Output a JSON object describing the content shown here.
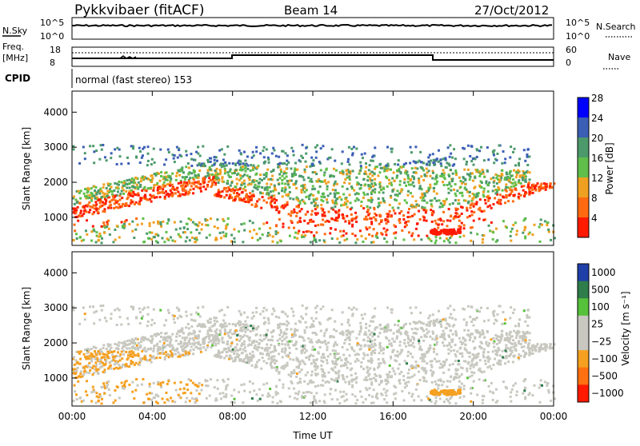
{
  "header": {
    "title": "Pykkvibaer (fitACF)",
    "beam": "Beam 14",
    "date": "27/Oct/2012"
  },
  "nsky_panel": {
    "left_label": "N.Sky",
    "right_label": "N.Search",
    "left_ticks": [
      "10^5",
      "10^0"
    ],
    "right_ticks": [
      "10^5",
      "10^0"
    ]
  },
  "freq_panel": {
    "left_label_line1": "Freq.",
    "left_label_line2": "[MHz]",
    "right_label": "Nave",
    "left_ticks": [
      "18",
      "8"
    ],
    "right_ticks": [
      "60",
      "0"
    ]
  },
  "cpid": {
    "label": "CPID",
    "value": "normal (fast stereo) 153"
  },
  "chart_data": [
    {
      "type": "heatmap",
      "name": "power",
      "ylabel": "Slant Range [km]",
      "ylim": [
        200,
        4600
      ],
      "yticks": [
        "1000",
        "2000",
        "3000",
        "4000"
      ],
      "colorbar_label": "Power [dB]",
      "colorbar_ticks": [
        "4",
        "8",
        "12",
        "16",
        "20",
        "24",
        "28"
      ],
      "colorbar_colors": [
        "#0000ff",
        "#3b5fb5",
        "#4c9a6b",
        "#5fbf4a",
        "#f0a020",
        "#ff6a10",
        "#ff1a00"
      ]
    },
    {
      "type": "heatmap",
      "name": "velocity",
      "ylabel": "Slant Range [km]",
      "ylim": [
        200,
        4600
      ],
      "yticks": [
        "1000",
        "2000",
        "3000",
        "4000"
      ],
      "colorbar_label": "Velocity [m s⁻¹]",
      "colorbar_ticks": [
        "1000",
        "500",
        "100",
        "25",
        "−25",
        "−100",
        "−500",
        "−1000"
      ],
      "colorbar_colors": [
        "#1f3fa8",
        "#2e7d4a",
        "#56c13a",
        "#c8c8c0",
        "#c8c8c0",
        "#f5a020",
        "#ff7010",
        "#ff1a00"
      ]
    }
  ],
  "xaxis": {
    "label": "Time UT",
    "ticks": [
      "00:00",
      "04:00",
      "08:00",
      "12:00",
      "16:00",
      "20:00",
      "00:00"
    ]
  }
}
